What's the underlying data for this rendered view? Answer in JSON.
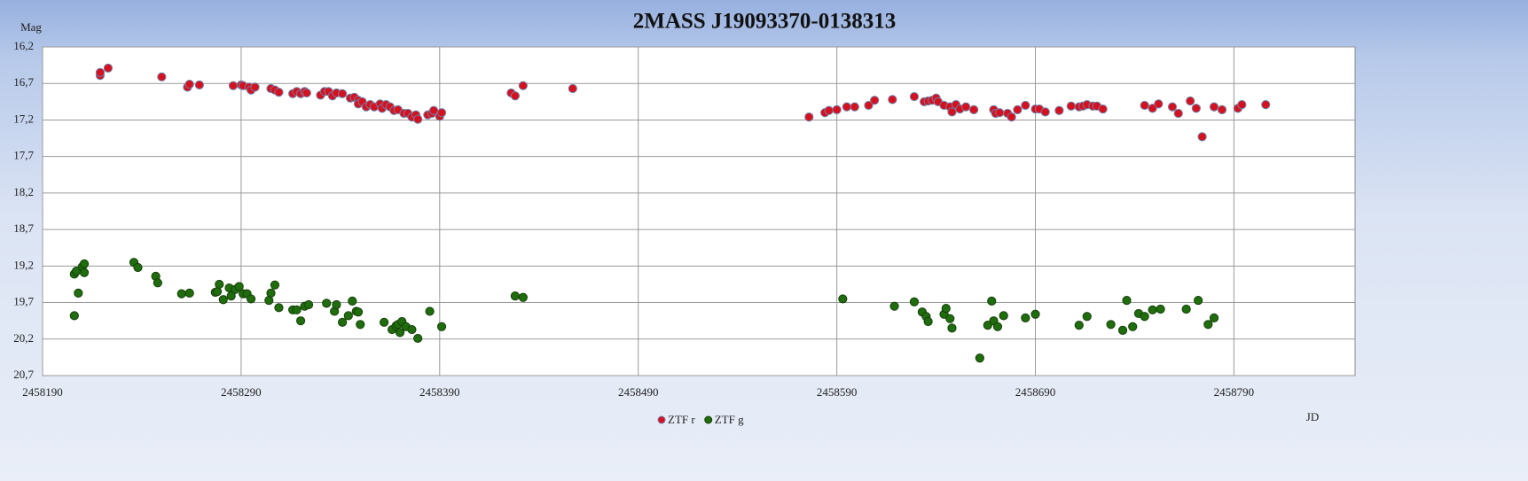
{
  "chart_data": {
    "type": "scatter",
    "title": "2MASS J19093370-0138313",
    "y_label": "Mag",
    "x_label": "JD",
    "xlim": [
      2458190,
      2458851
    ],
    "xticks": [
      2458190,
      2458290,
      2458390,
      2458490,
      2458590,
      2458690,
      2458790
    ],
    "ylim": [
      16.2,
      20.7
    ],
    "y_inverted": true,
    "yticks": [
      {
        "value": 16.2,
        "label": "16,2"
      },
      {
        "value": 16.7,
        "label": "16,7"
      },
      {
        "value": 17.2,
        "label": "17,2"
      },
      {
        "value": 17.7,
        "label": "17,7"
      },
      {
        "value": 18.2,
        "label": "18,2"
      },
      {
        "value": 18.7,
        "label": "18,7"
      },
      {
        "value": 19.2,
        "label": "19,2"
      },
      {
        "value": 19.7,
        "label": "19,7"
      },
      {
        "value": 20.2,
        "label": "20,2"
      },
      {
        "value": 20.7,
        "label": "20,7"
      }
    ],
    "grid": true,
    "legend": "bottom",
    "series": [
      {
        "name": "ZTF r",
        "color": "#d7101e",
        "x": [
          2458219,
          2458219,
          2458223,
          2458250,
          2458263,
          2458264,
          2458269,
          2458286,
          2458290,
          2458291,
          2458294,
          2458295,
          2458297,
          2458305,
          2458307,
          2458309,
          2458316,
          2458318,
          2458320,
          2458322,
          2458323,
          2458330,
          2458332,
          2458334,
          2458336,
          2458338,
          2458341,
          2458345,
          2458347,
          2458349,
          2458349,
          2458351,
          2458353,
          2458355,
          2458357,
          2458360,
          2458361,
          2458363,
          2458365,
          2458367,
          2458369,
          2458372,
          2458374,
          2458376,
          2458378,
          2458379,
          2458384,
          2458386,
          2458387,
          2458390,
          2458391,
          2458426,
          2458428,
          2458432,
          2458457,
          2458576,
          2458584,
          2458586,
          2458590,
          2458595,
          2458599,
          2458606,
          2458609,
          2458618,
          2458629,
          2458634,
          2458636,
          2458638,
          2458640,
          2458641,
          2458644,
          2458647,
          2458648,
          2458650,
          2458652,
          2458655,
          2458659,
          2458669,
          2458670,
          2458672,
          2458676,
          2458678,
          2458681,
          2458685,
          2458690,
          2458692,
          2458695,
          2458702,
          2458708,
          2458712,
          2458714,
          2458716,
          2458719,
          2458721,
          2458724,
          2458745,
          2458749,
          2458752,
          2458759,
          2458762,
          2458768,
          2458771,
          2458774,
          2458780,
          2458784,
          2458792,
          2458794,
          2458806
        ],
        "values": [
          16.59,
          16.55,
          16.49,
          16.61,
          16.75,
          16.71,
          16.72,
          16.73,
          16.72,
          16.73,
          16.75,
          16.79,
          16.75,
          16.77,
          16.79,
          16.82,
          16.84,
          16.81,
          16.84,
          16.81,
          16.83,
          16.86,
          16.81,
          16.81,
          16.87,
          16.83,
          16.84,
          16.9,
          16.89,
          16.93,
          16.98,
          16.95,
          17.02,
          16.99,
          17.02,
          16.98,
          17.04,
          16.99,
          17.02,
          17.07,
          17.06,
          17.11,
          17.11,
          17.16,
          17.13,
          17.19,
          17.13,
          17.11,
          17.07,
          17.15,
          17.1,
          16.83,
          16.87,
          16.73,
          16.77,
          17.16,
          17.1,
          17.07,
          17.06,
          17.02,
          17.02,
          17.0,
          16.93,
          16.92,
          16.88,
          16.95,
          16.94,
          16.93,
          16.9,
          16.95,
          17.0,
          17.02,
          17.09,
          16.99,
          17.05,
          17.02,
          17.06,
          17.06,
          17.11,
          17.1,
          17.11,
          17.16,
          17.06,
          17.0,
          17.05,
          17.05,
          17.09,
          17.07,
          17.01,
          17.02,
          17.01,
          16.99,
          17.01,
          17.01,
          17.05,
          17.0,
          17.04,
          16.98,
          17.02,
          17.11,
          16.94,
          17.04,
          17.43,
          17.02,
          17.06,
          17.04,
          16.99,
          16.99
        ]
      },
      {
        "name": "ZTF g",
        "color": "#1f6d0d",
        "x": [
          2458206,
          2458207,
          2458210,
          2458211,
          2458211,
          2458208,
          2458206,
          2458236,
          2458238,
          2458247,
          2458248,
          2458260,
          2458264,
          2458277,
          2458278,
          2458279,
          2458281,
          2458284,
          2458285,
          2458287,
          2458289,
          2458291,
          2458293,
          2458295,
          2458304,
          2458305,
          2458307,
          2458309,
          2458316,
          2458318,
          2458320,
          2458322,
          2458324,
          2458333,
          2458337,
          2458338,
          2458341,
          2458344,
          2458346,
          2458348,
          2458349,
          2458350,
          2458362,
          2458366,
          2458368,
          2458369,
          2458370,
          2458371,
          2458373,
          2458376,
          2458379,
          2458385,
          2458391,
          2458428,
          2458432,
          2458593,
          2458619,
          2458629,
          2458633,
          2458635,
          2458636,
          2458644,
          2458645,
          2458647,
          2458648,
          2458662,
          2458666,
          2458668,
          2458669,
          2458671,
          2458674,
          2458685,
          2458690,
          2458712,
          2458716,
          2458728,
          2458734,
          2458736,
          2458739,
          2458742,
          2458745,
          2458749,
          2458753,
          2458766,
          2458772,
          2458777,
          2458780
        ],
        "values": [
          19.31,
          19.27,
          19.21,
          19.17,
          19.29,
          19.57,
          19.88,
          19.15,
          19.22,
          19.34,
          19.43,
          19.58,
          19.57,
          19.56,
          19.55,
          19.45,
          19.66,
          19.5,
          19.61,
          19.52,
          19.48,
          19.58,
          19.58,
          19.65,
          19.67,
          19.57,
          19.46,
          19.77,
          19.8,
          19.8,
          19.95,
          19.75,
          19.73,
          19.71,
          19.82,
          19.73,
          19.97,
          19.88,
          19.68,
          19.82,
          19.83,
          20.0,
          19.97,
          20.07,
          20.02,
          20.0,
          20.11,
          19.96,
          20.03,
          20.07,
          20.19,
          19.82,
          20.03,
          19.61,
          19.63,
          19.65,
          19.75,
          19.69,
          19.83,
          19.89,
          19.96,
          19.86,
          19.78,
          19.92,
          20.05,
          20.46,
          20.01,
          19.68,
          19.95,
          20.03,
          19.88,
          19.91,
          19.86,
          20.01,
          19.89,
          20.0,
          20.08,
          19.67,
          20.03,
          19.85,
          19.89,
          19.8,
          19.79,
          19.79,
          19.67,
          20.0,
          19.91
        ]
      }
    ]
  }
}
